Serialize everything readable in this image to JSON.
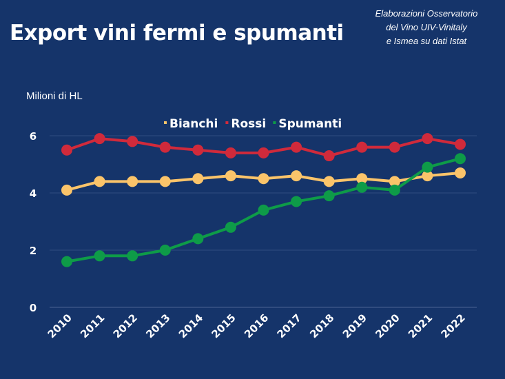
{
  "chart_data": {
    "type": "line",
    "title": "Export vini fermi e spumanti",
    "source_note": [
      "Elaborazioni Osservatorio",
      "del Vino UIV-Vinitaly",
      "e Ismea su dati Istat"
    ],
    "ylabel": "Milioni di HL",
    "xlabel": "",
    "ylim": [
      0,
      6.2
    ],
    "yticks": [
      0,
      2,
      4,
      6
    ],
    "grid": true,
    "legend_position": "top-center",
    "categories": [
      "2010",
      "2011",
      "2012",
      "2013",
      "2014",
      "2015",
      "2016",
      "2017",
      "2018",
      "2019",
      "2020",
      "2021",
      "2022"
    ],
    "series": [
      {
        "name": "Bianchi",
        "color": "#fbc46a",
        "values": [
          4.1,
          4.4,
          4.4,
          4.4,
          4.5,
          4.6,
          4.5,
          4.6,
          4.4,
          4.5,
          4.4,
          4.6,
          4.7
        ]
      },
      {
        "name": "Rossi",
        "color": "#d02a3b",
        "values": [
          5.5,
          5.9,
          5.8,
          5.6,
          5.5,
          5.4,
          5.4,
          5.6,
          5.3,
          5.6,
          5.6,
          5.9,
          5.7
        ]
      },
      {
        "name": "Spumanti",
        "color": "#0e9b48",
        "values": [
          1.6,
          1.8,
          1.8,
          2.0,
          2.4,
          2.8,
          3.4,
          3.7,
          3.9,
          4.2,
          4.1,
          4.9,
          5.2
        ]
      }
    ]
  }
}
